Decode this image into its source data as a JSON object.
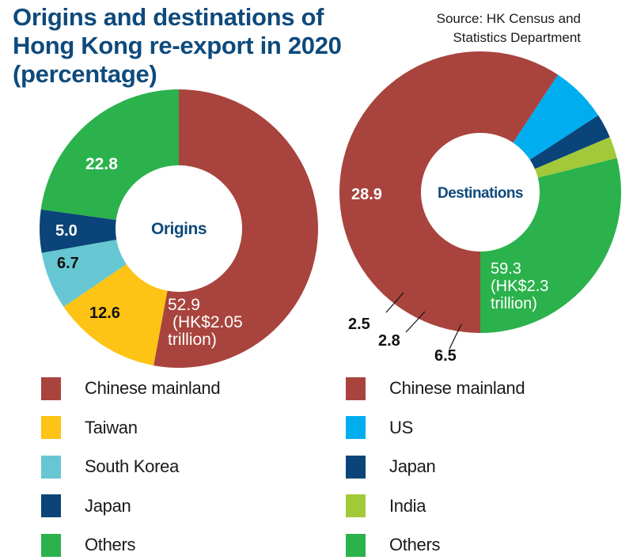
{
  "title_lines": [
    "Origins and destinations of",
    "Hong Kong re-export in 2020",
    "(percentage)"
  ],
  "source_lines": [
    "Source: HK Census and",
    "Statistics Department"
  ],
  "colors": {
    "title": "#0e4a7c",
    "chinese_mainland": "#a8443d",
    "taiwan": "#fdc315",
    "south_korea": "#66c7d3",
    "japan": "#0a4478",
    "others": "#2bb24c",
    "us": "#00adef",
    "india": "#a2c93a"
  },
  "chart_data": [
    {
      "type": "pie",
      "title": "Origins",
      "center_label": "Origins",
      "unit": "percentage",
      "slices": [
        {
          "name": "Chinese mainland",
          "value": 52.9,
          "label_lines": [
            "52.9",
            "(HK$2.05",
            "trillion)"
          ],
          "color": "#a8443d"
        },
        {
          "name": "Taiwan",
          "value": 12.6,
          "label_lines": [
            "12.6"
          ],
          "color": "#fdc315"
        },
        {
          "name": "South Korea",
          "value": 6.7,
          "label_lines": [
            "6.7"
          ],
          "color": "#66c7d3"
        },
        {
          "name": "Japan",
          "value": 5.0,
          "label_lines": [
            "5.0"
          ],
          "color": "#0a4478"
        },
        {
          "name": "Others",
          "value": 22.8,
          "label_lines": [
            "22.8"
          ],
          "color": "#2bb24c"
        }
      ],
      "legend": [
        "Chinese mainland",
        "Taiwan",
        "South Korea",
        "Japan",
        "Others"
      ],
      "legend_placement": "bottom-left"
    },
    {
      "type": "pie",
      "title": "Destinations",
      "center_label": "Destinations",
      "unit": "percentage",
      "slices": [
        {
          "name": "Chinese mainland",
          "value": 59.3,
          "label_lines": [
            "59.3",
            "(HK$2.3",
            "trillion)"
          ],
          "color": "#a8443d"
        },
        {
          "name": "US",
          "value": 6.5,
          "label_lines": [
            "6.5"
          ],
          "color": "#00adef"
        },
        {
          "name": "Japan",
          "value": 2.8,
          "label_lines": [
            "2.8"
          ],
          "color": "#0a4478"
        },
        {
          "name": "India",
          "value": 2.5,
          "label_lines": [
            "2.5"
          ],
          "color": "#a2c93a"
        },
        {
          "name": "Others",
          "value": 28.9,
          "label_lines": [
            "28.9"
          ],
          "color": "#2bb24c"
        }
      ],
      "legend": [
        "Chinese mainland",
        "US",
        "Japan",
        "India",
        "Others"
      ],
      "legend_placement": "bottom-right"
    }
  ]
}
